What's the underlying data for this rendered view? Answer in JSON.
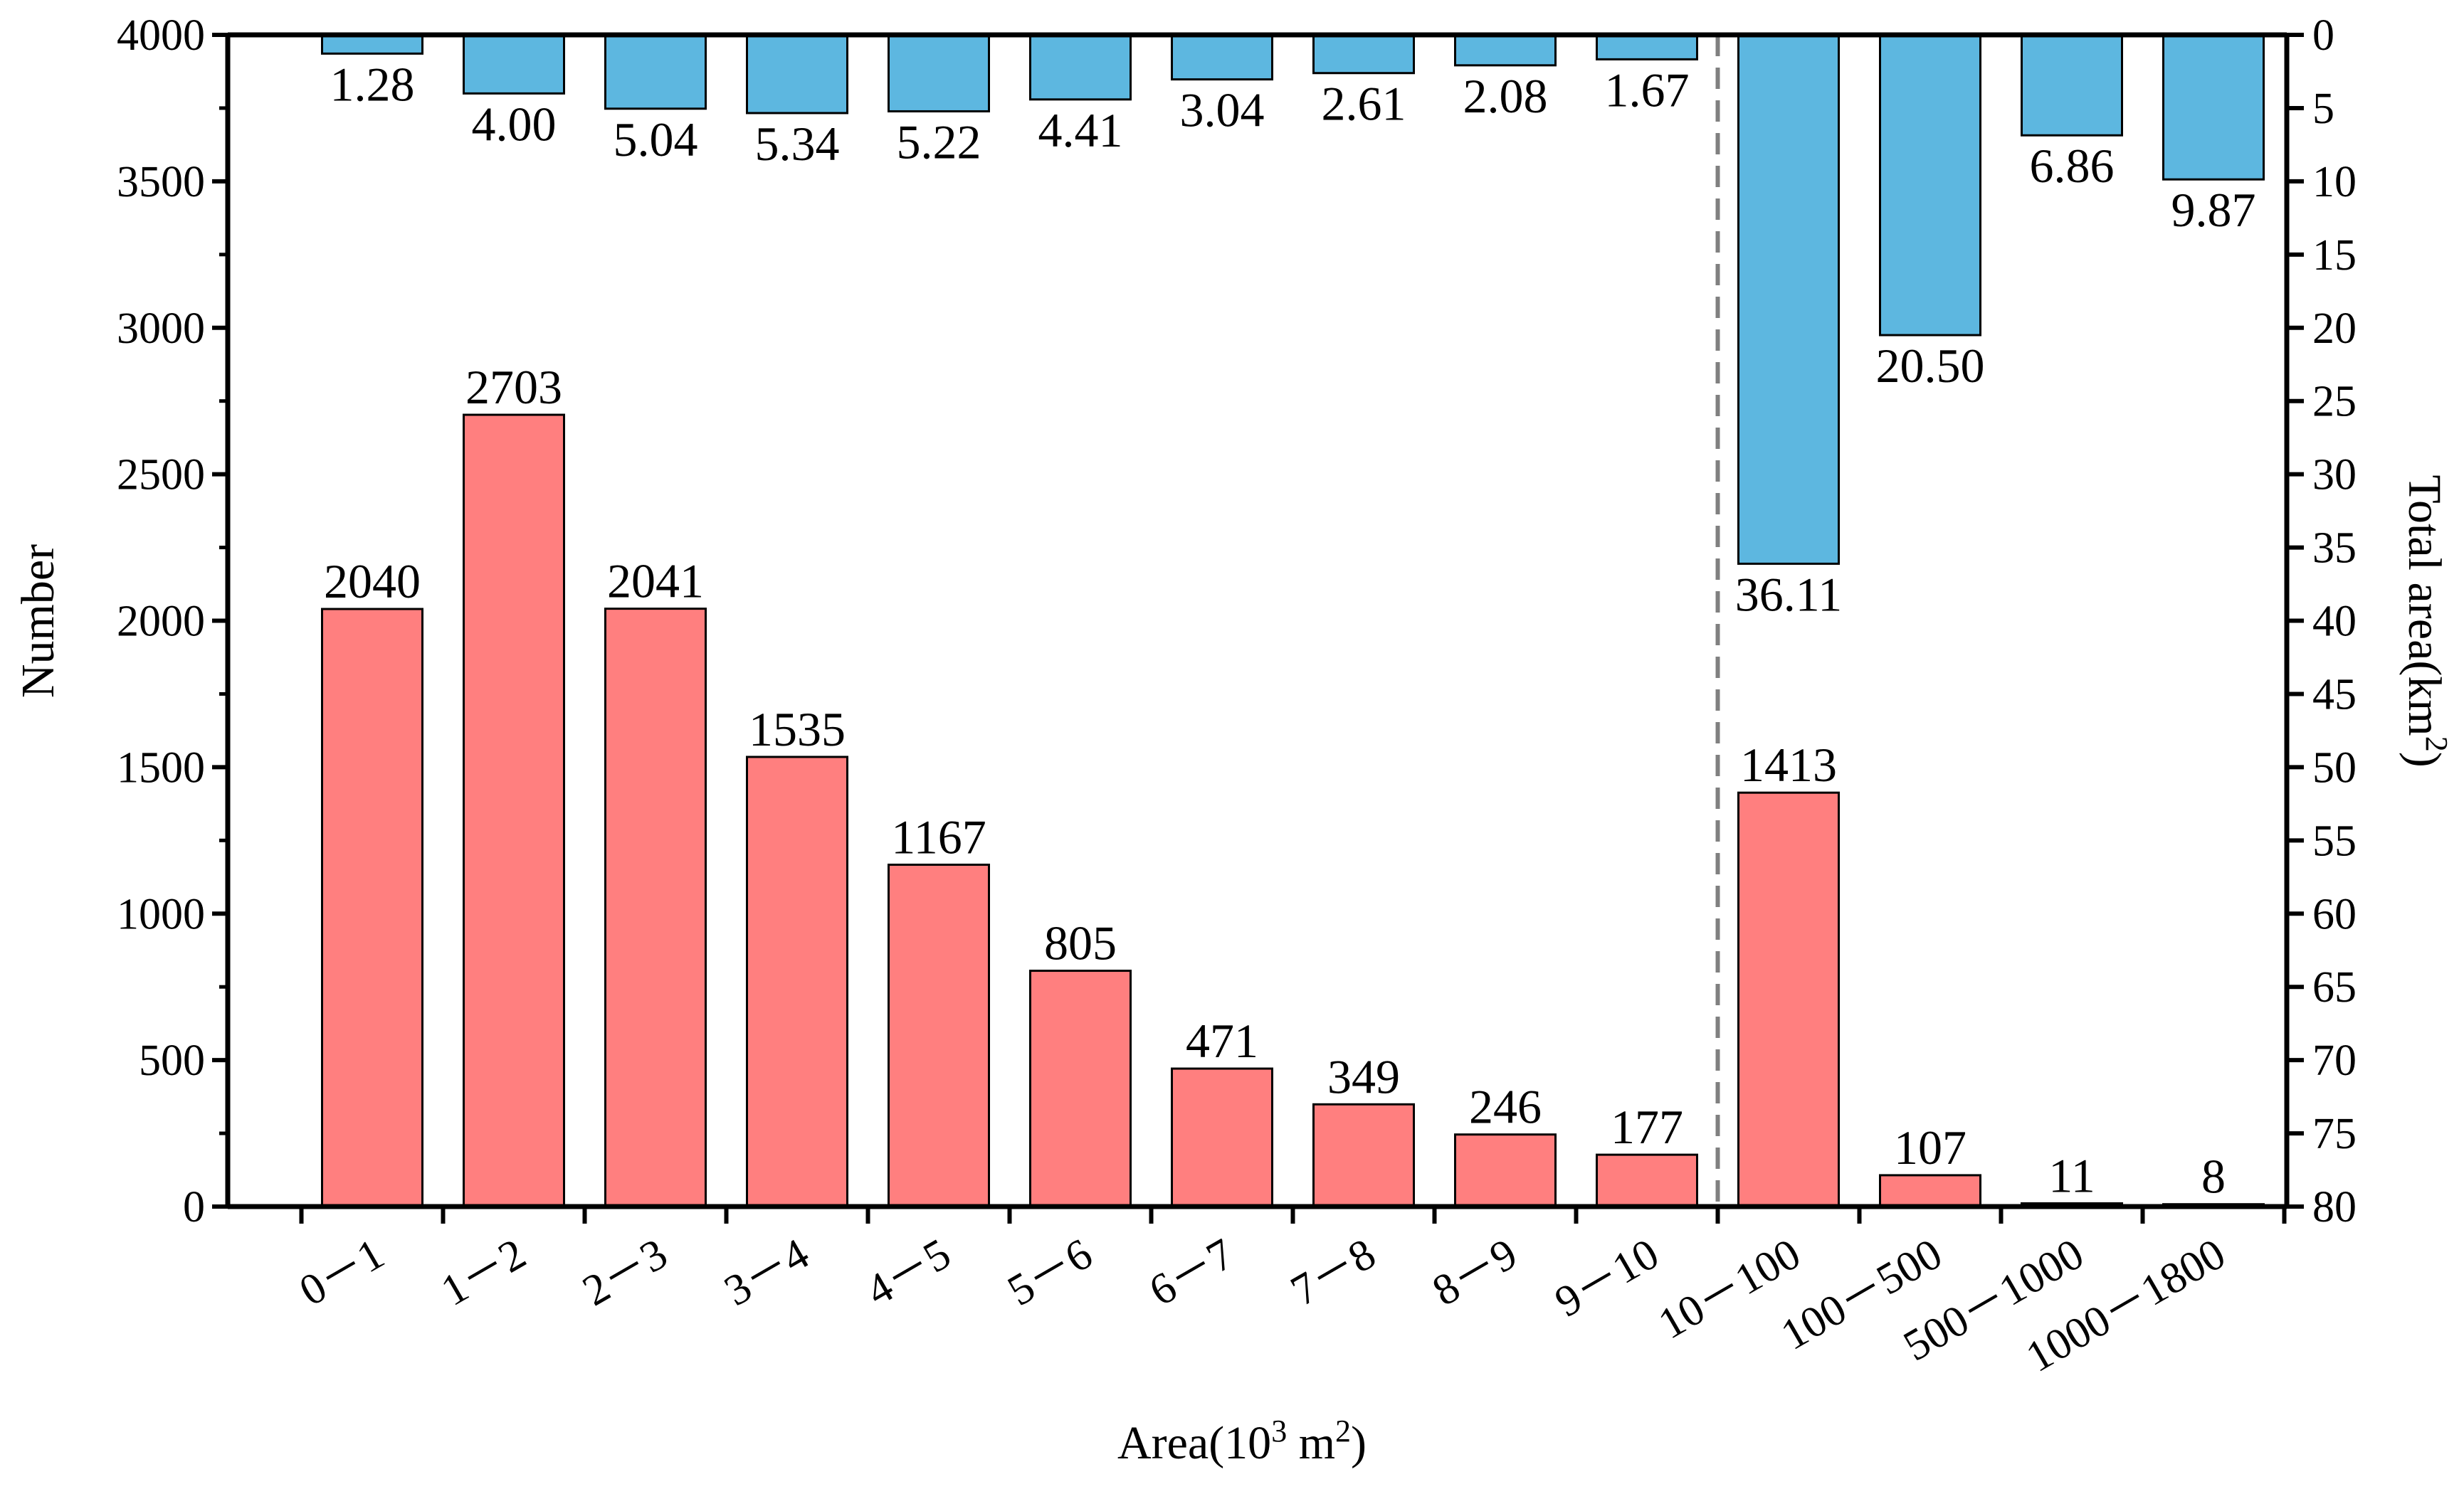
{
  "chart_data": {
    "type": "bar",
    "categories": [
      "0－1",
      "1－2",
      "2－3",
      "3－4",
      "4－5",
      "5－6",
      "6－7",
      "7－8",
      "8－9",
      "9－10",
      "10－100",
      "100－500",
      "500－1000",
      "1000－1800"
    ],
    "series": [
      {
        "name": "Number",
        "axis": "left",
        "color": "#FF7F7F",
        "values": [
          2040,
          2703,
          2041,
          1535,
          1167,
          805,
          471,
          349,
          246,
          177,
          1413,
          107,
          11,
          8
        ],
        "labels": [
          "2040",
          "2703",
          "2041",
          "1535",
          "1167",
          "805",
          "471",
          "349",
          "246",
          "177",
          "1413",
          "107",
          "11",
          "8"
        ]
      },
      {
        "name": "Total area",
        "axis": "right",
        "color": "#5DB7E0",
        "values": [
          1.28,
          4.0,
          5.04,
          5.34,
          5.22,
          4.41,
          3.04,
          2.61,
          2.08,
          1.67,
          36.11,
          20.5,
          6.86,
          9.87
        ],
        "labels": [
          "1.28",
          "4.00",
          "5.04",
          "5.34",
          "5.22",
          "4.41",
          "3.04",
          "2.61",
          "2.08",
          "1.67",
          "36.11",
          "20.50",
          "6.86",
          "9.87"
        ]
      }
    ],
    "xlabel": {
      "pre": "Area(10",
      "sup": "3",
      "mid": " m",
      "sup2": "2",
      "post": ")"
    },
    "ylabel": "Number",
    "y2label": {
      "pre": "Total area(km",
      "sup": "2",
      "post": ")"
    },
    "ylim": [
      0,
      4000
    ],
    "yticks": [
      "0",
      "500",
      "1000",
      "1500",
      "2000",
      "2500",
      "3000",
      "3500",
      "4000"
    ],
    "y2lim": [
      0,
      80
    ],
    "y2_inverted": true,
    "y2ticks": [
      "0",
      "5",
      "10",
      "15",
      "20",
      "25",
      "30",
      "35",
      "40",
      "45",
      "50",
      "55",
      "60",
      "65",
      "70",
      "75",
      "80"
    ],
    "separator_after_category": "9－10",
    "grid": false
  }
}
